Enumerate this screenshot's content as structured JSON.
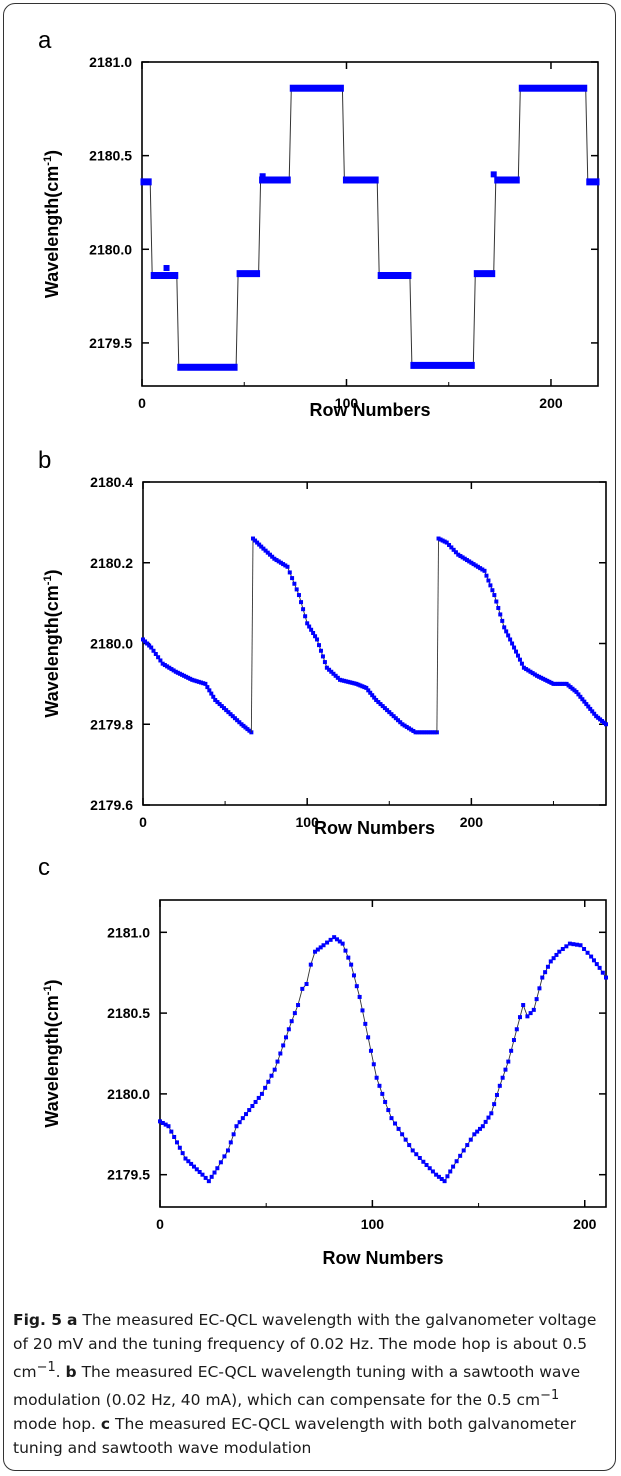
{
  "chart_data": [
    {
      "panel": "a",
      "type": "scatter",
      "xlabel": "Row Numbers",
      "ylabel": "Wavelength(cm",
      "ylabel_sup": "-1",
      "ylabel_close": ")",
      "xlim": [
        0,
        223
      ],
      "ylim": [
        2179.27,
        2181.0
      ],
      "xticks": [
        0,
        100,
        200
      ],
      "yticks": [
        2179.5,
        2180.0,
        2180.5,
        2181.0
      ],
      "ytick_labels": [
        "2179.5",
        "2180.0",
        "2180.5",
        "2181.0"
      ],
      "color": "#0000ff",
      "levels": [
        {
          "x0": 0,
          "x1": 4,
          "y": 2180.36
        },
        {
          "x0": 5,
          "x1": 17,
          "y": 2179.86
        },
        {
          "x0": 18,
          "x1": 46,
          "y": 2179.37
        },
        {
          "x0": 47,
          "x1": 57,
          "y": 2179.87
        },
        {
          "x0": 58,
          "x1": 72,
          "y": 2180.37
        },
        {
          "x0": 73,
          "x1": 98,
          "y": 2180.86
        },
        {
          "x0": 99,
          "x1": 115,
          "y": 2180.37
        },
        {
          "x0": 116,
          "x1": 131,
          "y": 2179.86
        },
        {
          "x0": 132,
          "x1": 162,
          "y": 2179.38
        },
        {
          "x0": 163,
          "x1": 172,
          "y": 2179.87
        },
        {
          "x0": 173,
          "x1": 184,
          "y": 2180.37
        },
        {
          "x0": 185,
          "x1": 217,
          "y": 2180.86
        },
        {
          "x0": 218,
          "x1": 223,
          "y": 2180.36
        }
      ],
      "outliers": [
        {
          "x": 12,
          "y": 2179.9
        },
        {
          "x": 59,
          "y": 2180.39
        },
        {
          "x": 172,
          "y": 2180.4
        }
      ]
    },
    {
      "panel": "b",
      "type": "scatter",
      "xlabel": "Row Numbers",
      "ylabel": "Wavelength(cm",
      "ylabel_sup": "-1",
      "ylabel_close": ")",
      "xlim": [
        0,
        282
      ],
      "ylim": [
        2179.6,
        2180.4
      ],
      "xticks": [
        0,
        100,
        200
      ],
      "yticks": [
        2179.6,
        2179.8,
        2180.0,
        2180.2,
        2180.4
      ],
      "ytick_labels": [
        "2179.6",
        "2179.8",
        "2180.0",
        "2180.2",
        "2180.4"
      ],
      "color": "#0000ff",
      "segments": [
        {
          "points": [
            [
              0,
              2180.01
            ],
            [
              5,
              2179.99
            ],
            [
              12,
              2179.95
            ],
            [
              20,
              2179.93
            ],
            [
              30,
              2179.91
            ],
            [
              38,
              2179.9
            ],
            [
              44,
              2179.86
            ],
            [
              52,
              2179.83
            ],
            [
              60,
              2179.8
            ],
            [
              66,
              2179.78
            ]
          ]
        },
        {
          "points": [
            [
              67,
              2180.26
            ],
            [
              72,
              2180.24
            ],
            [
              80,
              2180.21
            ],
            [
              88,
              2180.19
            ],
            [
              95,
              2180.12
            ],
            [
              100,
              2180.05
            ],
            [
              106,
              2180.01
            ],
            [
              112,
              2179.94
            ],
            [
              120,
              2179.91
            ],
            [
              130,
              2179.9
            ],
            [
              136,
              2179.89
            ],
            [
              142,
              2179.86
            ],
            [
              150,
              2179.83
            ],
            [
              158,
              2179.8
            ],
            [
              166,
              2179.78
            ],
            [
              179,
              2179.78
            ]
          ]
        },
        {
          "points": [
            [
              180,
              2180.26
            ],
            [
              185,
              2180.25
            ],
            [
              192,
              2180.22
            ],
            [
              200,
              2180.2
            ],
            [
              208,
              2180.18
            ],
            [
              214,
              2180.12
            ],
            [
              220,
              2180.04
            ],
            [
              226,
              2179.99
            ],
            [
              232,
              2179.94
            ],
            [
              240,
              2179.92
            ],
            [
              250,
              2179.9
            ],
            [
              258,
              2179.9
            ],
            [
              264,
              2179.88
            ],
            [
              270,
              2179.85
            ],
            [
              276,
              2179.82
            ],
            [
              282,
              2179.8
            ]
          ]
        }
      ]
    },
    {
      "panel": "c",
      "type": "scatter",
      "xlabel": "Row Numbers",
      "ylabel": "Wavelength(cm",
      "ylabel_sup": "-1",
      "ylabel_close": ")",
      "xlim": [
        0,
        210
      ],
      "ylim": [
        2179.3,
        2181.2
      ],
      "xticks": [
        0,
        100,
        200
      ],
      "yticks": [
        2179.5,
        2180.0,
        2180.5,
        2181.0
      ],
      "ytick_labels": [
        "2179.5",
        "2180.0",
        "2180.5",
        "2181.0"
      ],
      "color": "#0000ff",
      "segments": [
        {
          "points": [
            [
              0,
              2179.83
            ],
            [
              4,
              2179.8
            ],
            [
              8,
              2179.7
            ],
            [
              12,
              2179.6
            ],
            [
              16,
              2179.55
            ],
            [
              20,
              2179.5
            ],
            [
              23,
              2179.46
            ],
            [
              27,
              2179.54
            ],
            [
              32,
              2179.65
            ],
            [
              36,
              2179.8
            ],
            [
              42,
              2179.9
            ],
            [
              48,
              2180.0
            ],
            [
              54,
              2180.15
            ],
            [
              58,
              2180.3
            ],
            [
              62,
              2180.45
            ],
            [
              65,
              2180.55
            ],
            [
              67,
              2180.65
            ],
            [
              69,
              2180.68
            ],
            [
              71,
              2180.8
            ],
            [
              73,
              2180.88
            ],
            [
              77,
              2180.92
            ],
            [
              82,
              2180.97
            ],
            [
              86,
              2180.93
            ],
            [
              90,
              2180.8
            ],
            [
              94,
              2180.6
            ],
            [
              98,
              2180.35
            ],
            [
              102,
              2180.1
            ],
            [
              106,
              2179.95
            ],
            [
              109,
              2179.85
            ],
            [
              114,
              2179.75
            ],
            [
              119,
              2179.65
            ],
            [
              124,
              2179.58
            ],
            [
              130,
              2179.5
            ],
            [
              134,
              2179.46
            ],
            [
              138,
              2179.55
            ],
            [
              143,
              2179.65
            ],
            [
              148,
              2179.75
            ],
            [
              152,
              2179.8
            ],
            [
              156,
              2179.88
            ],
            [
              160,
              2180.05
            ],
            [
              164,
              2180.2
            ],
            [
              168,
              2180.4
            ],
            [
              171,
              2180.55
            ],
            [
              173,
              2180.48
            ],
            [
              176,
              2180.52
            ],
            [
              180,
              2180.72
            ],
            [
              184,
              2180.82
            ],
            [
              188,
              2180.88
            ],
            [
              193,
              2180.93
            ],
            [
              198,
              2180.92
            ],
            [
              203,
              2180.85
            ],
            [
              207,
              2180.78
            ],
            [
              210,
              2180.72
            ]
          ]
        }
      ]
    }
  ],
  "caption": {
    "fig_label": "Fig. 5",
    "a_label": "a",
    "a_text_1": "The measured EC-QCL wavelength with the galvanometer voltage of 20 mV and the tuning frequency of 0.02 Hz. The mode hop is about 0.5 cm",
    "a_sup": "−1",
    "a_text_2": ".",
    "b_label": "b",
    "b_text_1": "The measured EC-QCL wavelength tuning with a sawtooth wave modulation (0.02 Hz, 40 mA), which can compensate for the 0.5 cm",
    "b_sup": "−1",
    "b_text_2": "mode hop.",
    "c_label": "c",
    "c_text": "The measured EC-QCL wavelength with both galvanometer tuning and sawtooth wave modulation"
  }
}
